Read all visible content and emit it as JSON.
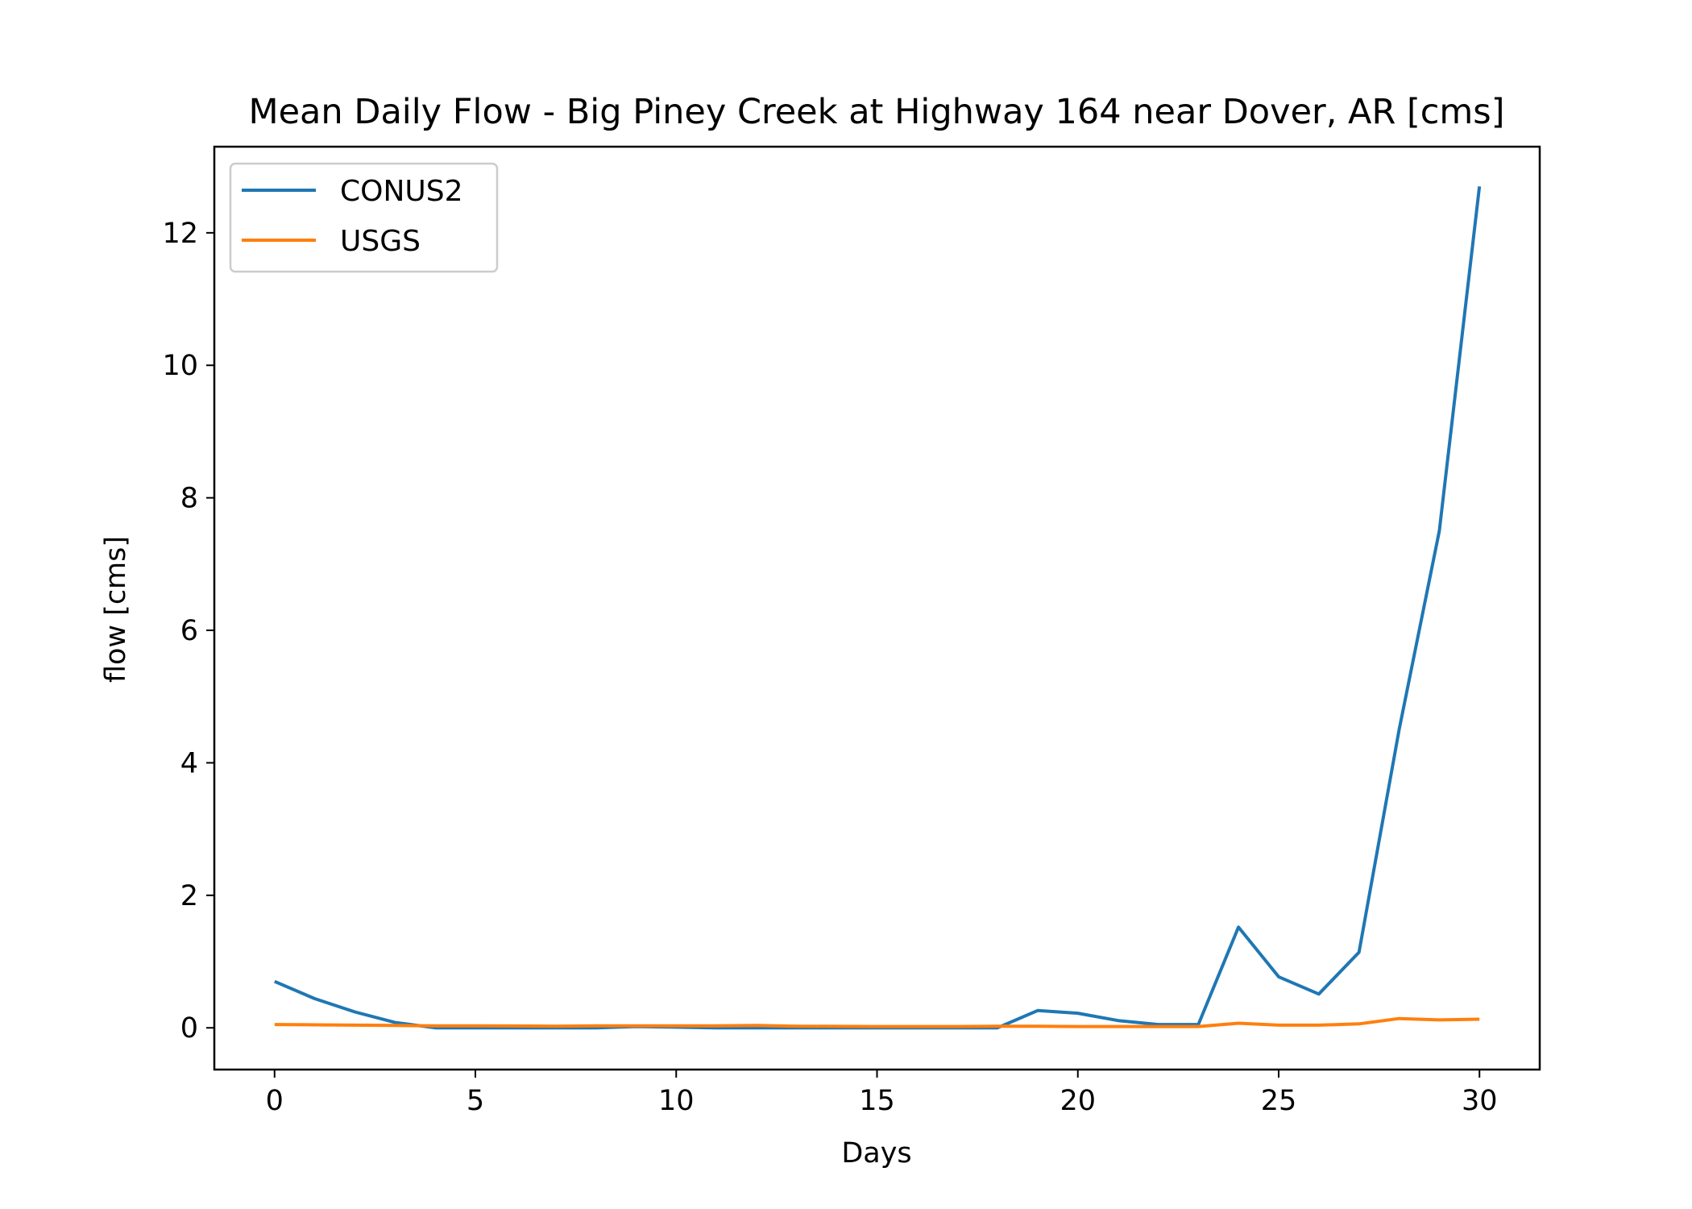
{
  "chart_data": {
    "type": "line",
    "title": "Mean Daily Flow - Big Piney Creek at Highway 164 near Dover, AR [cms]",
    "xlabel": "Days",
    "ylabel": "flow [cms]",
    "xlim": [
      -1.5,
      31.5
    ],
    "ylim": [
      -0.63,
      13.3
    ],
    "xticks": [
      0,
      5,
      10,
      15,
      20,
      25,
      30
    ],
    "yticks": [
      0,
      2,
      4,
      6,
      8,
      10,
      12
    ],
    "grid": false,
    "legend_position": "top-left",
    "x": [
      0,
      1,
      2,
      3,
      4,
      5,
      6,
      7,
      8,
      9,
      10,
      11,
      12,
      13,
      14,
      15,
      16,
      17,
      18,
      19,
      20,
      21,
      22,
      23,
      24,
      25,
      26,
      27,
      28,
      29,
      30
    ],
    "series": [
      {
        "name": "CONUS2",
        "color": "#1f77b4",
        "values": [
          0.7,
          0.44,
          0.24,
          0.08,
          0.0,
          0.0,
          0.0,
          0.0,
          0.0,
          0.02,
          0.01,
          0.0,
          0.0,
          0.0,
          0.0,
          0.0,
          0.0,
          0.0,
          0.0,
          0.26,
          0.22,
          0.11,
          0.05,
          0.05,
          1.52,
          0.77,
          0.51,
          1.14,
          4.5,
          7.5,
          12.7
        ]
      },
      {
        "name": "USGS",
        "color": "#ff7f0e",
        "values": [
          0.05,
          0.045,
          0.04,
          0.035,
          0.03,
          0.03,
          0.028,
          0.025,
          0.03,
          0.03,
          0.03,
          0.03,
          0.035,
          0.025,
          0.022,
          0.02,
          0.02,
          0.02,
          0.025,
          0.025,
          0.02,
          0.02,
          0.02,
          0.02,
          0.07,
          0.04,
          0.04,
          0.06,
          0.14,
          0.12,
          0.13
        ]
      }
    ]
  }
}
